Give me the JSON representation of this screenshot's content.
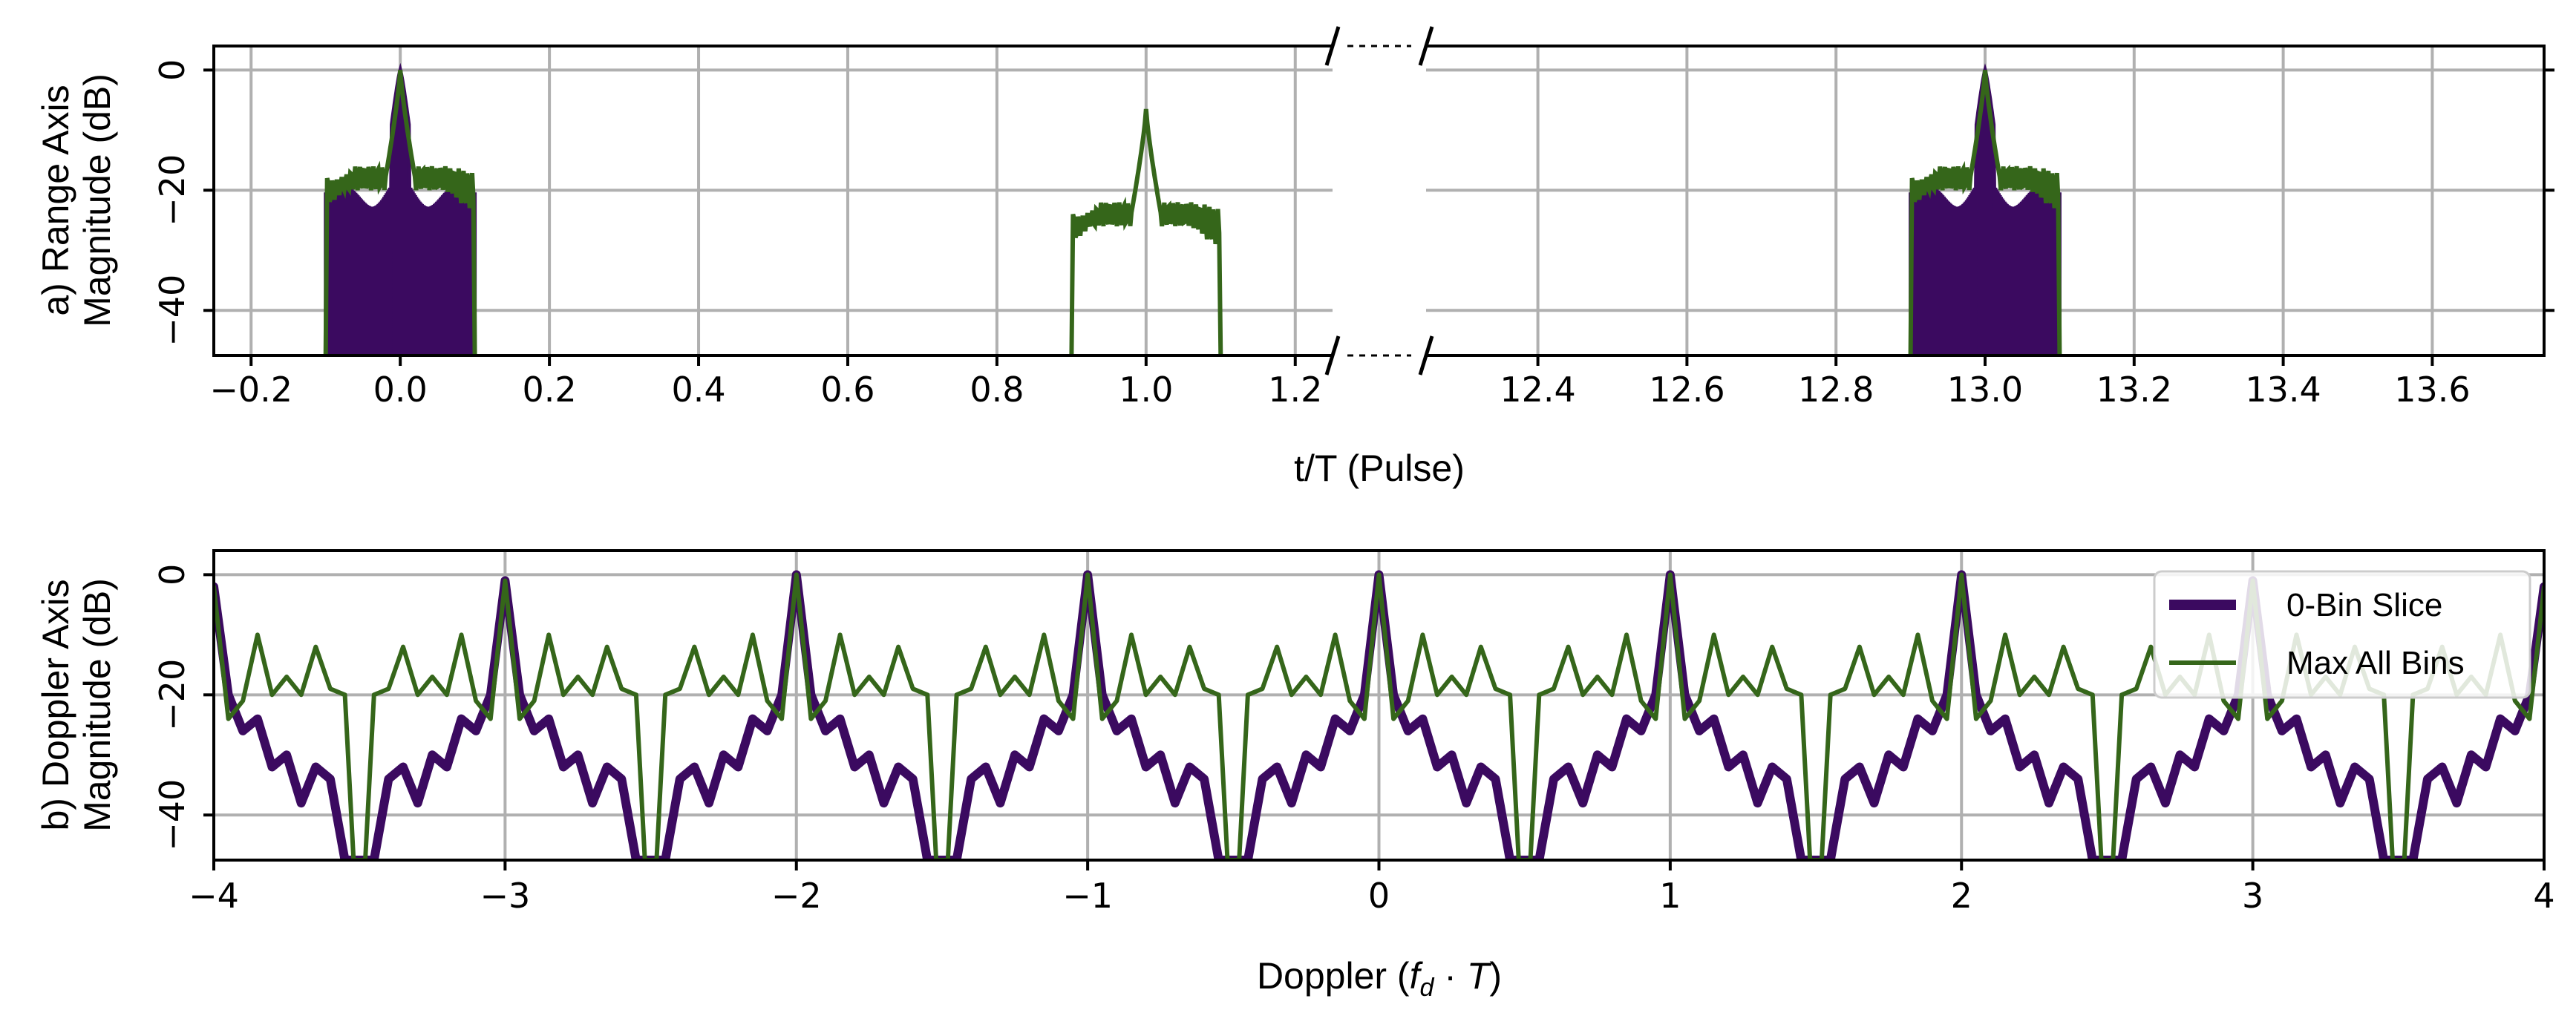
{
  "colors": {
    "slice": "#3b0a60",
    "max": "#35661a",
    "grid": "#b0b0b0"
  },
  "chart_data": [
    {
      "type": "line",
      "panel": "a",
      "ylabel_line1": "a) Range Axis",
      "ylabel_line2": "Magnitude (dB)",
      "xlabel": "t/T (Pulse)",
      "broken_axis": true,
      "segments": [
        {
          "xlim": [
            -0.25,
            1.25
          ],
          "xticks": [
            -0.2,
            0.0,
            0.2,
            0.4,
            0.6,
            0.8,
            1.0,
            1.2
          ],
          "xtick_labels": [
            "−0.2",
            "0.0",
            "0.2",
            "0.4",
            "0.6",
            "0.8",
            "1.0",
            "1.2"
          ]
        },
        {
          "xlim": [
            12.25,
            13.75
          ],
          "xticks": [
            12.4,
            12.6,
            12.8,
            13.0,
            13.2,
            13.4,
            13.6
          ],
          "xtick_labels": [
            "12.4",
            "12.6",
            "12.8",
            "13.0",
            "13.2",
            "13.4",
            "13.6"
          ]
        }
      ],
      "ylim": [
        -47.5,
        4
      ],
      "yticks": [
        0,
        -20,
        -40
      ],
      "ytick_labels": [
        "0",
        "−20",
        "−40"
      ],
      "series": [
        {
          "name": "0-Bin Slice",
          "description": "main lobe 0 dB at t/T = 0 and 13, sidelobes about -18 dB, support ±0.1",
          "x": [
            -0.1,
            -0.09,
            -0.05,
            -0.02,
            -0.01,
            0.0,
            0.01,
            0.02,
            0.05,
            0.09,
            0.1
          ],
          "y": [
            -47.5,
            -18,
            -20,
            -18,
            -10,
            0,
            -10,
            -18,
            -20,
            -18,
            -47.5
          ],
          "centers": [
            0,
            13
          ]
        },
        {
          "name": "Max All Bins",
          "description": "envelope over all Doppler bins; peaks 0 dB at 0 and 13, -6.5 dB at 1.0",
          "x": [
            0.9,
            0.91,
            0.95,
            0.98,
            0.99,
            1.0,
            1.01,
            1.02,
            1.05,
            1.09,
            1.1
          ],
          "y": [
            -47.5,
            -25,
            -25,
            -23,
            -17,
            -6.5,
            -17,
            -23,
            -25,
            -25,
            -47.5
          ],
          "centers": [
            1
          ]
        }
      ]
    },
    {
      "type": "line",
      "panel": "b",
      "ylabel_line1": "b) Doppler Axis",
      "ylabel_line2": "Magnitude (dB)",
      "xlabel": "Doppler (f_d · T)",
      "xlabel_pre": "Doppler (",
      "xlabel_f": "f",
      "xlabel_sub": "d",
      "xlabel_dot": " · ",
      "xlabel_T": "T",
      "xlabel_post": ")",
      "xlim": [
        -4,
        4
      ],
      "xticks": [
        -4,
        -3,
        -2,
        -1,
        0,
        1,
        2,
        3,
        4
      ],
      "xtick_labels": [
        "−4",
        "−3",
        "−2",
        "−1",
        "0",
        "1",
        "2",
        "3",
        "4"
      ],
      "ylim": [
        -47.5,
        4
      ],
      "yticks": [
        0,
        -20,
        -40
      ],
      "ytick_labels": [
        "0",
        "−20",
        "−40"
      ],
      "peak_levels": [
        {
          "x": -4,
          "y": -2
        },
        {
          "x": -3,
          "y": -1
        },
        {
          "x": -2,
          "y": 0
        },
        {
          "x": -1,
          "y": 0
        },
        {
          "x": 0,
          "y": 0
        },
        {
          "x": 1,
          "y": 0
        },
        {
          "x": 2,
          "y": 0
        },
        {
          "x": 3,
          "y": -1
        },
        {
          "x": 4,
          "y": -2
        }
      ],
      "series": [
        {
          "name": "0-Bin Slice",
          "period_offsets": [
            -0.45,
            -0.4,
            -0.35,
            -0.3,
            -0.25,
            -0.2,
            -0.15,
            -0.1,
            -0.05,
            0.0,
            0.05,
            0.1,
            0.15,
            0.2,
            0.25,
            0.3,
            0.35,
            0.4,
            0.45
          ],
          "period_values": [
            -47.5,
            -34,
            -32,
            -38,
            -30,
            -32,
            -24,
            -26,
            -20,
            0,
            -20,
            -26,
            -24,
            -32,
            -30,
            -38,
            -32,
            -34,
            -47.5
          ]
        },
        {
          "name": "Max All Bins",
          "period_offsets": [
            -0.48,
            -0.45,
            -0.4,
            -0.35,
            -0.3,
            -0.25,
            -0.2,
            -0.15,
            -0.1,
            -0.05,
            0.0,
            0.05,
            0.1,
            0.15,
            0.2,
            0.25,
            0.3,
            0.35,
            0.4,
            0.45,
            0.48
          ],
          "period_values": [
            -47.5,
            -20,
            -19,
            -12,
            -20,
            -17,
            -20,
            -10,
            -21,
            -24,
            0,
            -24,
            -21,
            -10,
            -20,
            -17,
            -20,
            -12,
            -19,
            -20,
            -47.5
          ]
        }
      ],
      "legend": {
        "placement": "top-right",
        "entries": [
          "0-Bin Slice",
          "Max All Bins"
        ]
      }
    }
  ]
}
